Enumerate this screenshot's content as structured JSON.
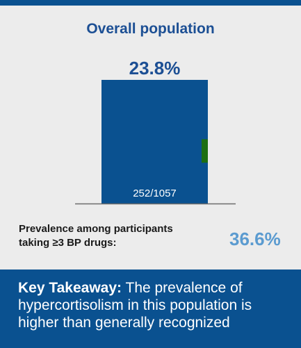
{
  "colors": {
    "bar": "#0a5190",
    "highlight": "#1d6f12",
    "value_label": "#1c4f94",
    "prevalence_value": "#5b9bd0",
    "banner": "#0a5190"
  },
  "panel": {
    "title": "Overall population"
  },
  "chart_data": {
    "type": "bar",
    "categories": [
      ""
    ],
    "values": [
      23.8
    ],
    "value_labels": [
      "23.8%"
    ],
    "count_labels": [
      "252/1057"
    ],
    "ylim": [
      0,
      23.8
    ],
    "grid": false
  },
  "prevalence": {
    "label_line1": "Prevalence among participants",
    "label_line2": "taking ≥3 BP drugs:",
    "value": "36.6%"
  },
  "takeaway": {
    "label": "Key Takeaway:",
    "text": " The prevalence of hypercortisolism in this population is higher than generally recognized"
  }
}
